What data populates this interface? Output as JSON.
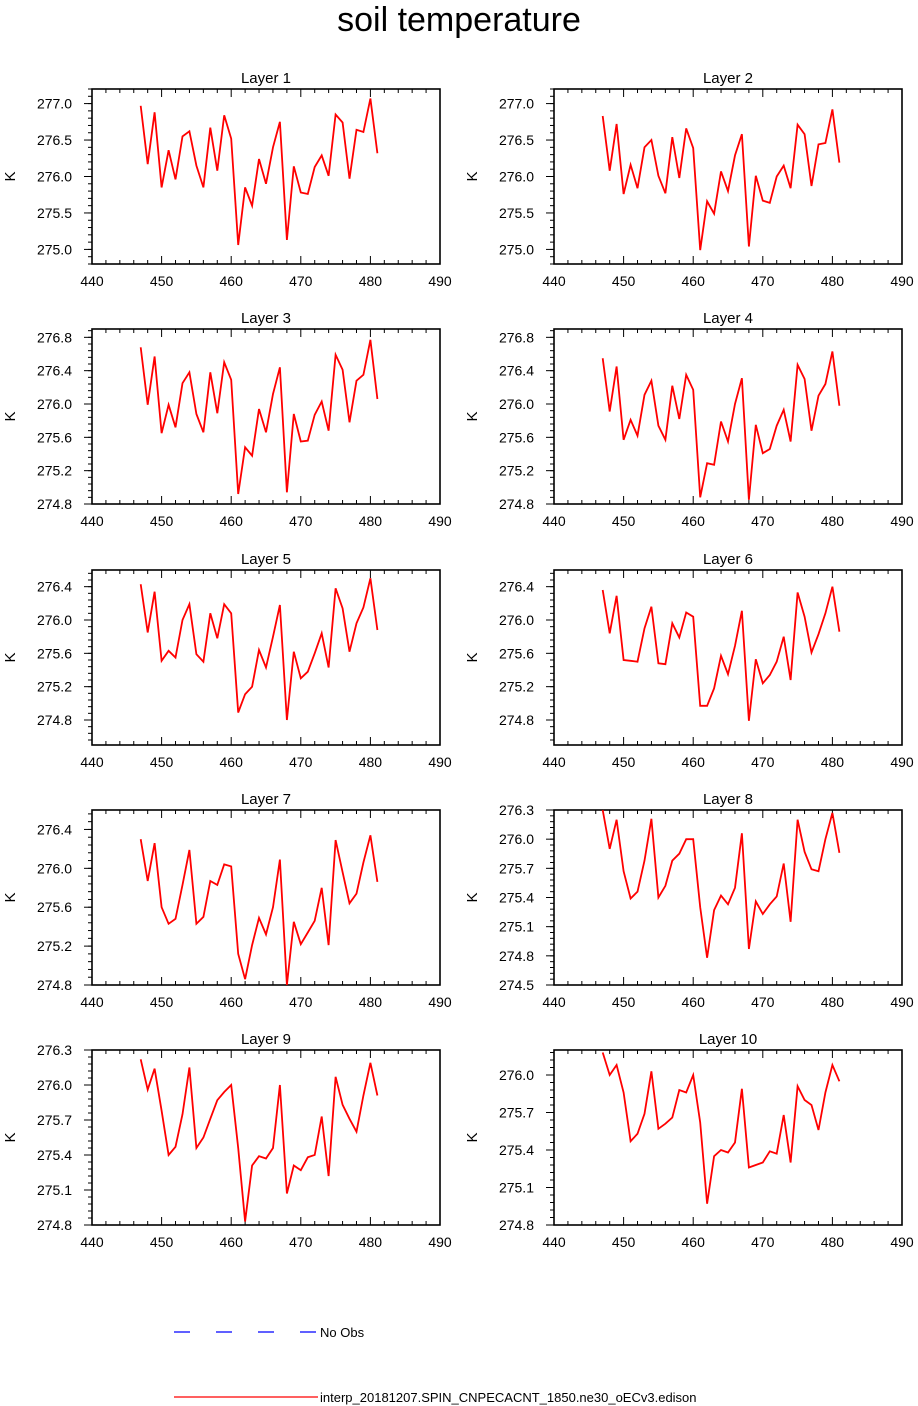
{
  "title": "soil temperature",
  "chart_data": [
    {
      "type": "line",
      "title": "Layer 1",
      "ylabel": "K",
      "xlim": [
        440,
        490
      ],
      "ylim": [
        274.8,
        277.2
      ],
      "xticks": [
        440,
        450,
        460,
        470,
        480,
        490
      ],
      "yticks": [
        "275.0",
        "275.5",
        "276.0",
        "276.5",
        "277.0"
      ],
      "x": [
        447,
        448,
        449,
        450,
        451,
        452,
        453,
        454,
        455,
        456,
        457,
        458,
        459,
        460,
        461,
        462,
        463,
        464,
        465,
        466,
        467,
        468,
        469,
        470,
        471,
        472,
        473,
        474,
        475,
        476,
        477,
        478,
        479,
        480,
        481
      ],
      "series": [
        {
          "values": [
            276.97,
            276.17,
            276.88,
            275.85,
            276.36,
            275.96,
            276.55,
            276.62,
            276.15,
            275.85,
            276.67,
            276.08,
            276.84,
            276.52,
            275.06,
            275.85,
            275.6,
            276.24,
            275.9,
            276.4,
            276.75,
            275.13,
            276.14,
            275.78,
            275.76,
            276.13,
            276.29,
            276.01,
            276.85,
            276.74,
            275.97,
            276.64,
            276.61,
            277.07,
            276.32
          ]
        }
      ]
    },
    {
      "type": "line",
      "title": "Layer 2",
      "ylabel": "K",
      "xlim": [
        440,
        490
      ],
      "ylim": [
        274.8,
        277.2
      ],
      "xticks": [
        440,
        450,
        460,
        470,
        480,
        490
      ],
      "yticks": [
        "275.0",
        "275.5",
        "276.0",
        "276.5",
        "277.0"
      ],
      "x": [
        447,
        448,
        449,
        450,
        451,
        452,
        453,
        454,
        455,
        456,
        457,
        458,
        459,
        460,
        461,
        462,
        463,
        464,
        465,
        466,
        467,
        468,
        469,
        470,
        471,
        472,
        473,
        474,
        475,
        476,
        477,
        478,
        479,
        480,
        481
      ],
      "series": [
        {
          "values": [
            276.83,
            276.08,
            276.72,
            275.76,
            276.16,
            275.84,
            276.4,
            276.5,
            276.01,
            275.77,
            276.54,
            275.98,
            276.66,
            276.39,
            274.99,
            275.66,
            275.49,
            276.07,
            275.8,
            276.29,
            276.58,
            275.04,
            276.01,
            275.67,
            275.64,
            276.0,
            276.15,
            275.84,
            276.71,
            276.58,
            275.87,
            276.44,
            276.46,
            276.92,
            276.19
          ]
        }
      ]
    },
    {
      "type": "line",
      "title": "Layer 3",
      "ylabel": "K",
      "xlim": [
        440,
        490
      ],
      "ylim": [
        274.8,
        276.9
      ],
      "xticks": [
        440,
        450,
        460,
        470,
        480,
        490
      ],
      "yticks": [
        "274.8",
        "275.2",
        "275.6",
        "276.0",
        "276.4",
        "276.8"
      ],
      "x": [
        447,
        448,
        449,
        450,
        451,
        452,
        453,
        454,
        455,
        456,
        457,
        458,
        459,
        460,
        461,
        462,
        463,
        464,
        465,
        466,
        467,
        468,
        469,
        470,
        471,
        472,
        473,
        474,
        475,
        476,
        477,
        478,
        479,
        480,
        481
      ],
      "series": [
        {
          "values": [
            276.68,
            275.99,
            276.57,
            275.65,
            275.99,
            275.72,
            276.25,
            276.38,
            275.88,
            275.66,
            276.38,
            275.89,
            276.5,
            276.29,
            274.92,
            275.48,
            275.38,
            275.94,
            275.66,
            276.12,
            276.44,
            274.94,
            275.88,
            275.55,
            275.56,
            275.87,
            276.03,
            275.68,
            276.59,
            276.41,
            275.78,
            276.28,
            276.35,
            276.77,
            276.06
          ]
        }
      ]
    },
    {
      "type": "line",
      "title": "Layer 4",
      "ylabel": "K",
      "xlim": [
        440,
        490
      ],
      "ylim": [
        274.8,
        276.9
      ],
      "xticks": [
        440,
        450,
        460,
        470,
        480,
        490
      ],
      "yticks": [
        "274.8",
        "275.2",
        "275.6",
        "276.0",
        "276.4",
        "276.8"
      ],
      "x": [
        447,
        448,
        449,
        450,
        451,
        452,
        453,
        454,
        455,
        456,
        457,
        458,
        459,
        460,
        461,
        462,
        463,
        464,
        465,
        466,
        467,
        468,
        469,
        470,
        471,
        472,
        473,
        474,
        475,
        476,
        477,
        478,
        479,
        480,
        481
      ],
      "series": [
        {
          "values": [
            276.55,
            275.91,
            276.45,
            275.57,
            275.81,
            275.62,
            276.11,
            276.28,
            275.74,
            275.57,
            276.22,
            275.82,
            276.35,
            276.17,
            274.88,
            275.29,
            275.27,
            275.79,
            275.55,
            276.0,
            276.31,
            274.85,
            275.75,
            275.41,
            275.46,
            275.74,
            275.93,
            275.55,
            276.47,
            276.3,
            275.68,
            276.1,
            276.24,
            276.63,
            275.98
          ]
        }
      ]
    },
    {
      "type": "line",
      "title": "Layer 5",
      "ylabel": "K",
      "xlim": [
        440,
        490
      ],
      "ylim": [
        274.5,
        276.6
      ],
      "xticks": [
        440,
        450,
        460,
        470,
        480,
        490
      ],
      "yticks": [
        "274.8",
        "275.2",
        "275.6",
        "276.0",
        "276.4"
      ],
      "x": [
        447,
        448,
        449,
        450,
        451,
        452,
        453,
        454,
        455,
        456,
        457,
        458,
        459,
        460,
        461,
        462,
        463,
        464,
        465,
        466,
        467,
        468,
        469,
        470,
        471,
        472,
        473,
        474,
        475,
        476,
        477,
        478,
        479,
        480,
        481
      ],
      "series": [
        {
          "values": [
            276.43,
            275.85,
            276.34,
            275.51,
            275.63,
            275.55,
            276.0,
            276.19,
            275.59,
            275.5,
            276.08,
            275.78,
            276.19,
            276.08,
            274.89,
            275.11,
            275.2,
            275.64,
            275.43,
            275.8,
            276.18,
            274.8,
            275.62,
            275.3,
            275.38,
            275.6,
            275.84,
            275.43,
            276.38,
            276.14,
            275.62,
            275.96,
            276.15,
            276.5,
            275.88
          ]
        }
      ]
    },
    {
      "type": "line",
      "title": "Layer 6",
      "ylabel": "K",
      "xlim": [
        440,
        490
      ],
      "ylim": [
        274.5,
        276.6
      ],
      "xticks": [
        440,
        450,
        460,
        470,
        480,
        490
      ],
      "yticks": [
        "274.8",
        "275.2",
        "275.6",
        "276.0",
        "276.4"
      ],
      "x": [
        447,
        448,
        449,
        450,
        451,
        452,
        453,
        454,
        455,
        456,
        457,
        458,
        459,
        460,
        461,
        462,
        463,
        464,
        465,
        466,
        467,
        468,
        469,
        470,
        471,
        472,
        473,
        474,
        475,
        476,
        477,
        478,
        479,
        480,
        481
      ],
      "series": [
        {
          "values": [
            276.36,
            275.84,
            276.29,
            275.52,
            275.51,
            275.5,
            275.9,
            276.16,
            275.48,
            275.47,
            275.96,
            275.79,
            276.09,
            276.04,
            274.97,
            274.97,
            275.18,
            275.57,
            275.35,
            275.69,
            276.11,
            274.79,
            275.53,
            275.24,
            275.34,
            275.5,
            275.8,
            275.28,
            276.33,
            276.04,
            275.61,
            275.83,
            276.08,
            276.4,
            275.86
          ]
        }
      ]
    },
    {
      "type": "line",
      "title": "Layer 7",
      "ylabel": "K",
      "xlim": [
        440,
        490
      ],
      "ylim": [
        274.8,
        276.6
      ],
      "xticks": [
        440,
        450,
        460,
        470,
        480,
        490
      ],
      "yticks": [
        "274.8",
        "275.2",
        "275.6",
        "276.0",
        "276.4"
      ],
      "x": [
        447,
        448,
        449,
        450,
        451,
        452,
        453,
        454,
        455,
        456,
        457,
        458,
        459,
        460,
        461,
        462,
        463,
        464,
        465,
        466,
        467,
        468,
        469,
        470,
        471,
        472,
        473,
        474,
        475,
        476,
        477,
        478,
        479,
        480,
        481
      ],
      "series": [
        {
          "values": [
            276.3,
            275.87,
            276.26,
            275.6,
            275.43,
            275.48,
            275.83,
            276.19,
            275.43,
            275.5,
            275.87,
            275.83,
            276.04,
            276.02,
            275.12,
            274.86,
            275.21,
            275.49,
            275.32,
            275.6,
            276.09,
            274.8,
            275.45,
            275.22,
            275.34,
            275.46,
            275.8,
            275.21,
            276.29,
            275.96,
            275.64,
            275.74,
            276.06,
            276.34,
            275.86
          ]
        }
      ]
    },
    {
      "type": "line",
      "title": "Layer 8",
      "ylabel": "K",
      "xlim": [
        440,
        490
      ],
      "ylim": [
        274.5,
        276.3
      ],
      "xticks": [
        440,
        450,
        460,
        470,
        480,
        490
      ],
      "yticks": [
        "274.5",
        "274.8",
        "275.1",
        "275.4",
        "275.7",
        "276.0",
        "276.3"
      ],
      "x": [
        447,
        448,
        449,
        450,
        451,
        452,
        453,
        454,
        455,
        456,
        457,
        458,
        459,
        460,
        461,
        462,
        463,
        464,
        465,
        466,
        467,
        468,
        469,
        470,
        471,
        472,
        473,
        474,
        475,
        476,
        477,
        478,
        479,
        480,
        481
      ],
      "series": [
        {
          "values": [
            276.3,
            275.9,
            276.2,
            275.67,
            275.39,
            275.46,
            275.78,
            276.21,
            275.4,
            275.52,
            275.78,
            275.85,
            276.0,
            276.0,
            275.3,
            274.78,
            275.27,
            275.42,
            275.33,
            275.5,
            276.06,
            274.87,
            275.36,
            275.23,
            275.33,
            275.41,
            275.75,
            275.15,
            276.2,
            275.87,
            275.69,
            275.67,
            276.0,
            276.27,
            275.86
          ]
        }
      ]
    },
    {
      "type": "line",
      "title": "Layer 9",
      "ylabel": "K",
      "xlim": [
        440,
        490
      ],
      "ylim": [
        274.8,
        276.3
      ],
      "xticks": [
        440,
        450,
        460,
        470,
        480,
        490
      ],
      "yticks": [
        "274.8",
        "275.1",
        "275.4",
        "275.7",
        "276.0",
        "276.3"
      ],
      "x": [
        447,
        448,
        449,
        450,
        451,
        452,
        453,
        454,
        455,
        456,
        457,
        458,
        459,
        460,
        461,
        462,
        463,
        464,
        465,
        466,
        467,
        468,
        469,
        470,
        471,
        472,
        473,
        474,
        475,
        476,
        477,
        478,
        479,
        480,
        481
      ],
      "series": [
        {
          "values": [
            276.22,
            275.96,
            276.14,
            275.78,
            275.4,
            275.47,
            275.75,
            276.15,
            275.46,
            275.55,
            275.71,
            275.87,
            275.94,
            276.0,
            275.46,
            274.83,
            275.31,
            275.39,
            275.37,
            275.46,
            276.0,
            275.07,
            275.31,
            275.27,
            275.38,
            275.4,
            275.73,
            275.22,
            276.07,
            275.83,
            275.71,
            275.6,
            275.91,
            276.19,
            275.91
          ]
        }
      ]
    },
    {
      "type": "line",
      "title": "Layer 10",
      "ylabel": "K",
      "xlim": [
        440,
        490
      ],
      "ylim": [
        274.8,
        276.2
      ],
      "xticks": [
        440,
        450,
        460,
        470,
        480,
        490
      ],
      "yticks": [
        "274.8",
        "275.1",
        "275.4",
        "275.7",
        "276.0"
      ],
      "x": [
        447,
        448,
        449,
        450,
        451,
        452,
        453,
        454,
        455,
        456,
        457,
        458,
        459,
        460,
        461,
        462,
        463,
        464,
        465,
        466,
        467,
        468,
        469,
        470,
        471,
        472,
        473,
        474,
        475,
        476,
        477,
        478,
        479,
        480,
        481
      ],
      "series": [
        {
          "values": [
            276.18,
            276.0,
            276.08,
            275.86,
            275.47,
            275.53,
            275.69,
            276.03,
            275.57,
            275.61,
            275.66,
            275.88,
            275.86,
            276.0,
            275.62,
            274.97,
            275.35,
            275.4,
            275.38,
            275.46,
            275.89,
            275.26,
            275.28,
            275.3,
            275.39,
            275.37,
            275.68,
            275.3,
            275.91,
            275.8,
            275.76,
            275.56,
            275.86,
            276.08,
            275.95
          ]
        }
      ]
    }
  ],
  "legend": {
    "obs_label": "No Obs",
    "obs_color": "#0000ff",
    "model_label": "interp_20181207.SPIN_CNPECACNT_1850.ne30_oECv3.edison",
    "model_color": "#ff0000"
  }
}
